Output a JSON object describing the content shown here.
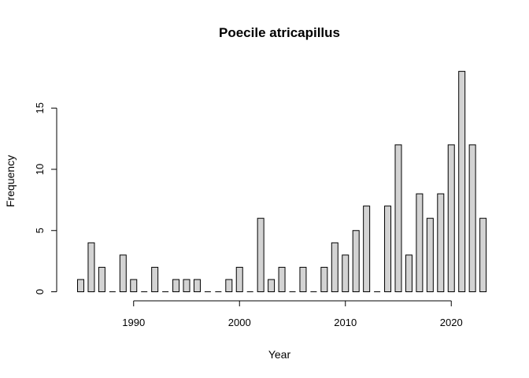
{
  "chart_data": {
    "type": "bar",
    "title": "Poecile atricapillus",
    "xlabel": "Year",
    "ylabel": "Frequency",
    "x": [
      1985,
      1986,
      1987,
      1988,
      1989,
      1990,
      1991,
      1992,
      1993,
      1994,
      1995,
      1996,
      1997,
      1998,
      1999,
      2000,
      2001,
      2002,
      2003,
      2004,
      2005,
      2006,
      2007,
      2008,
      2009,
      2010,
      2011,
      2012,
      2013,
      2014,
      2015,
      2016,
      2017,
      2018,
      2019,
      2020,
      2021,
      2022,
      2023
    ],
    "values": [
      1,
      4,
      2,
      0,
      3,
      1,
      0,
      2,
      0,
      1,
      1,
      1,
      0,
      0,
      1,
      2,
      0,
      6,
      1,
      2,
      0,
      2,
      0,
      2,
      4,
      3,
      5,
      7,
      0,
      7,
      12,
      3,
      8,
      6,
      8,
      12,
      18,
      12,
      6
    ],
    "xticks": [
      "1990",
      "2000",
      "2010",
      "2020"
    ],
    "yticks": [
      "0",
      "5",
      "10",
      "15"
    ],
    "xlim": [
      1984.5,
      2023.5
    ],
    "ylim": [
      0,
      18
    ],
    "grid": false,
    "bar_fill": "#d3d3d3",
    "bar_stroke": "#000000"
  }
}
